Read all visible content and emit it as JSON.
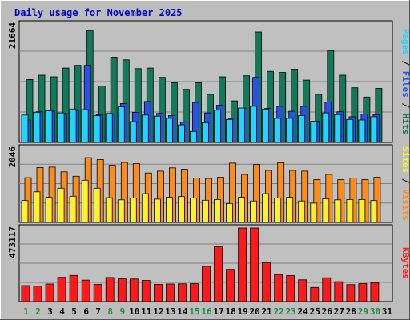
{
  "chart_data": [
    {
      "type": "bar",
      "title": "Daily usage for November 2025",
      "categories": [
        "1",
        "2",
        "3",
        "4",
        "5",
        "6",
        "7",
        "8",
        "9",
        "10",
        "11",
        "12",
        "13",
        "14",
        "15",
        "16",
        "17",
        "18",
        "19",
        "20",
        "21",
        "22",
        "23",
        "24",
        "25",
        "26",
        "27",
        "28",
        "29",
        "30",
        "31"
      ],
      "weekend_days": [
        "1",
        "2",
        "8",
        "9",
        "15",
        "16",
        "22",
        "23",
        "29",
        "30"
      ],
      "ymax_label": "21664",
      "ylim": [
        0,
        21664
      ],
      "ylabel_parts": [
        "Pages",
        "Files",
        "Hits"
      ],
      "series": [
        {
          "name": "Hits",
          "color": "#127a59",
          "values": [
            11500,
            12300,
            12000,
            13600,
            14100,
            20400,
            10300,
            15600,
            15100,
            13500,
            13600,
            11900,
            10900,
            9700,
            10900,
            8800,
            12000,
            7600,
            12200,
            20200,
            13000,
            12800,
            13400,
            11400,
            8800,
            16800,
            12300,
            10000,
            8300,
            9900,
            0
          ]
        },
        {
          "name": "Files",
          "color": "#2b50e8",
          "values": [
            4100,
            5600,
            5700,
            5300,
            5800,
            14100,
            5100,
            5200,
            7100,
            5500,
            7500,
            5300,
            4900,
            3700,
            7300,
            5400,
            6800,
            4400,
            6200,
            11900,
            6200,
            6600,
            5700,
            6600,
            3900,
            7400,
            5600,
            4700,
            5200,
            5100,
            0
          ]
        },
        {
          "name": "Pages",
          "color": "#22d4ff",
          "values": [
            5000,
            5500,
            5800,
            5400,
            6100,
            6000,
            4900,
            5300,
            6500,
            3800,
            5000,
            4800,
            4400,
            3200,
            2000,
            3600,
            5900,
            4200,
            6300,
            6600,
            6100,
            4400,
            4400,
            4900,
            3900,
            5400,
            5100,
            4200,
            4100,
            4700,
            0
          ]
        }
      ]
    },
    {
      "type": "bar",
      "ymax_label": "2046",
      "ylim": [
        0,
        2046
      ],
      "ylabel_parts": [
        "Sites",
        "Visits"
      ],
      "series": [
        {
          "name": "Visits",
          "color": "#ff8c1a",
          "values": [
            1230,
            1510,
            1520,
            1390,
            1270,
            1780,
            1730,
            1570,
            1650,
            1620,
            1360,
            1410,
            1500,
            1460,
            1220,
            1210,
            1240,
            1630,
            1320,
            1590,
            1430,
            1640,
            1430,
            1410,
            1180,
            1320,
            1180,
            1220,
            1180,
            1240,
            0
          ]
        },
        {
          "name": "Sites",
          "color": "#fff02e",
          "values": [
            600,
            840,
            690,
            940,
            720,
            1160,
            940,
            680,
            620,
            670,
            790,
            640,
            690,
            710,
            670,
            610,
            630,
            520,
            690,
            590,
            790,
            670,
            690,
            590,
            530,
            650,
            620,
            630,
            630,
            600,
            0
          ]
        }
      ]
    },
    {
      "type": "bar",
      "ymax_label": "473117",
      "ylim": [
        0,
        473117
      ],
      "ylabel_parts": [
        "KBytes"
      ],
      "series": [
        {
          "name": "KBytes",
          "color": "#ff1a1a",
          "values": [
            103000,
            99000,
            113000,
            156000,
            168000,
            138000,
            111000,
            155000,
            146000,
            145000,
            136000,
            111000,
            113000,
            114000,
            115000,
            227000,
            354000,
            207000,
            473117,
            473117,
            251000,
            174000,
            167000,
            140000,
            91000,
            153000,
            128000,
            109000,
            116000,
            120000,
            0
          ]
        }
      ]
    }
  ],
  "colors": {
    "title": "#0000cc",
    "weekday": "#000000",
    "weekend": "#1a8c4a",
    "panel_bg": "#c0c0c0",
    "grid": "#808080"
  }
}
